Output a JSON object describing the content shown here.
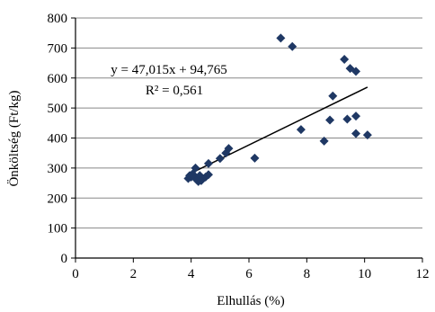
{
  "chart_data": {
    "type": "scatter",
    "title": "",
    "xlabel": "Elhullás (%)",
    "ylabel": "Önköltség (Ft/kg)",
    "xlim": [
      0,
      12
    ],
    "ylim": [
      0,
      800
    ],
    "xticks": [
      0,
      2,
      4,
      6,
      8,
      10,
      12
    ],
    "yticks": [
      0,
      100,
      200,
      300,
      400,
      500,
      600,
      700,
      800
    ],
    "grid": "horizontal",
    "marker": "diamond",
    "marker_color": "#1f3864",
    "series": [
      {
        "x": [
          3.9,
          3.95,
          4.0,
          4.05,
          4.1,
          4.15,
          4.2,
          4.25,
          4.3,
          4.35,
          4.4,
          4.5,
          4.6,
          4.6,
          5.0,
          5.2,
          5.3,
          6.2,
          7.1,
          7.5,
          7.8,
          8.6,
          8.8,
          8.9,
          9.3,
          9.4,
          9.5,
          9.7,
          9.7,
          9.7,
          10.1
        ],
        "y": [
          265,
          275,
          270,
          280,
          272,
          300,
          260,
          255,
          275,
          258,
          265,
          270,
          315,
          278,
          332,
          350,
          365,
          333,
          733,
          705,
          428,
          390,
          460,
          540,
          662,
          463,
          632,
          622,
          473,
          415,
          410
        ]
      }
    ],
    "trendline": {
      "slope": 47.015,
      "intercept": 94.765,
      "x_range": [
        4.0,
        10.1
      ],
      "equation_label": "y = 47,015x + 94,765",
      "r2_label": "R² = 0,561"
    }
  }
}
